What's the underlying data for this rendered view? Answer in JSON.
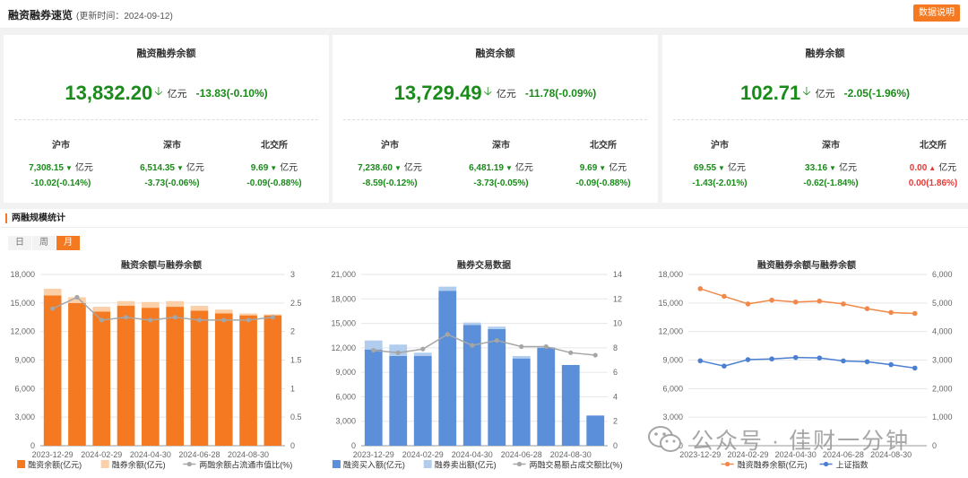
{
  "header": {
    "title": "融资融券速览",
    "update_text": "(更新时间：2024-09-12)",
    "button": "数据说明"
  },
  "cards": [
    {
      "title": "融资融券余额",
      "value": "13,832.20",
      "unit": "亿元",
      "change": "-13.83(-0.10%)",
      "subs": [
        {
          "name": "沪市",
          "value": "7,308.15",
          "unit": "亿元",
          "change": "-10.02(-0.14%)",
          "dir": "down"
        },
        {
          "name": "深市",
          "value": "6,514.35",
          "unit": "亿元",
          "change": "-3.73(-0.06%)",
          "dir": "down"
        },
        {
          "name": "北交所",
          "value": "9.69",
          "unit": "亿元",
          "change": "-0.09(-0.88%)",
          "dir": "down"
        }
      ]
    },
    {
      "title": "融资余额",
      "value": "13,729.49",
      "unit": "亿元",
      "change": "-11.78(-0.09%)",
      "subs": [
        {
          "name": "沪市",
          "value": "7,238.60",
          "unit": "亿元",
          "change": "-8.59(-0.12%)",
          "dir": "down"
        },
        {
          "name": "深市",
          "value": "6,481.19",
          "unit": "亿元",
          "change": "-3.73(-0.05%)",
          "dir": "down"
        },
        {
          "name": "北交所",
          "value": "9.69",
          "unit": "亿元",
          "change": "-0.09(-0.88%)",
          "dir": "down"
        }
      ]
    },
    {
      "title": "融券余额",
      "value": "102.71",
      "unit": "亿元",
      "change": "-2.05(-1.96%)",
      "subs": [
        {
          "name": "沪市",
          "value": "69.55",
          "unit": "亿元",
          "change": "-1.43(-2.01%)",
          "dir": "down"
        },
        {
          "name": "深市",
          "value": "33.16",
          "unit": "亿元",
          "change": "-0.62(-1.84%)",
          "dir": "down"
        },
        {
          "name": "北交所",
          "value": "0.00",
          "unit": "亿元",
          "change": "0.00(1.86%)",
          "dir": "up"
        }
      ]
    }
  ],
  "section": {
    "title": "两融规模统计",
    "tabs": [
      "日",
      "周",
      "月"
    ],
    "active_tab": "月"
  },
  "colors": {
    "orange": "#f47920",
    "orange_light": "#fbcfa8",
    "blue": "#5b8fd9",
    "blue_light": "#b0cdee",
    "gray_line": "#a6a6a6",
    "green": "#1a8a1a",
    "red": "#e53935",
    "line_orange": "#f0894a",
    "line_blue": "#4a7fd1"
  },
  "watermark": "公众号 · 佳财一分钟",
  "chart_data": [
    {
      "type": "bar",
      "title": "融资余额与融券余额",
      "categories": [
        "2023-12-29",
        "2024-01-31",
        "2024-02-29",
        "2024-03-29",
        "2024-04-30",
        "2024-05-31",
        "2024-06-28",
        "2024-07-31",
        "2024-08-30",
        "2024-09-12"
      ],
      "x_tick_labels": [
        "2023-12-29",
        "2024-02-29",
        "2024-04-30",
        "2024-06-28",
        "2024-08-30"
      ],
      "series": [
        {
          "name": "融资余额(亿元)",
          "axis": "left",
          "stack": true,
          "values": [
            15800,
            15000,
            14100,
            14700,
            14500,
            14600,
            14200,
            13900,
            13700,
            13700
          ]
        },
        {
          "name": "融券余额(亿元)",
          "axis": "left",
          "stack": true,
          "values": [
            700,
            600,
            500,
            500,
            600,
            600,
            500,
            400,
            200,
            100
          ]
        },
        {
          "name": "两融余额占流通市值比(%)",
          "axis": "right",
          "type": "line",
          "values": [
            2.4,
            2.6,
            2.2,
            2.25,
            2.2,
            2.25,
            2.2,
            2.2,
            2.2,
            2.25
          ]
        }
      ],
      "ylim_left": [
        0,
        18000
      ],
      "yticks_left": [
        "0",
        "3,000",
        "6,000",
        "9,000",
        "12,000",
        "15,000",
        "18,000"
      ],
      "ylim_right": [
        0,
        3
      ],
      "yticks_right": [
        "0",
        "0.5",
        "1",
        "1.5",
        "2",
        "2.5",
        "3"
      ]
    },
    {
      "type": "bar",
      "title": "融券交易数据",
      "categories": [
        "2023-12-29",
        "2024-01-31",
        "2024-02-29",
        "2024-03-29",
        "2024-04-30",
        "2024-05-31",
        "2024-06-28",
        "2024-07-31",
        "2024-08-30",
        "2024-09-12"
      ],
      "x_tick_labels": [
        "2023-12-29",
        "2024-02-29",
        "2024-04-30",
        "2024-06-28",
        "2024-08-30"
      ],
      "series": [
        {
          "name": "融资买入额(亿元)",
          "axis": "left",
          "stack": true,
          "values": [
            11800,
            11000,
            11000,
            19000,
            14800,
            14300,
            10700,
            12000,
            9900,
            3700
          ]
        },
        {
          "name": "融券卖出额(亿元)",
          "axis": "left",
          "stack": true,
          "values": [
            1100,
            1400,
            400,
            500,
            300,
            300,
            300,
            100,
            0,
            0
          ]
        },
        {
          "name": "两融交易额占成交额比(%)",
          "axis": "right",
          "type": "line",
          "values": [
            7.8,
            7.6,
            7.9,
            9.1,
            8.2,
            8.6,
            8.1,
            8.1,
            7.6,
            7.4
          ]
        }
      ],
      "ylim_left": [
        0,
        21000
      ],
      "yticks_left": [
        "0",
        "3,000",
        "6,000",
        "9,000",
        "12,000",
        "15,000",
        "18,000",
        "21,000"
      ],
      "ylim_right": [
        0,
        14
      ],
      "yticks_right": [
        "0",
        "2",
        "4",
        "6",
        "8",
        "10",
        "12",
        "14"
      ]
    },
    {
      "type": "line",
      "title": "融资融券余额与融券余额",
      "categories": [
        "2023-12-29",
        "2024-01-31",
        "2024-02-29",
        "2024-03-29",
        "2024-04-30",
        "2024-05-31",
        "2024-06-28",
        "2024-07-31",
        "2024-08-30",
        "2024-09-12"
      ],
      "x_tick_labels": [
        "2023-12-29",
        "2024-02-29",
        "2024-04-30",
        "2024-06-28",
        "2024-08-30"
      ],
      "series": [
        {
          "name": "融资融券余额(亿元)",
          "axis": "left",
          "values": [
            16500,
            15700,
            14900,
            15300,
            15100,
            15200,
            14900,
            14400,
            14000,
            13900
          ]
        },
        {
          "name": "上证指数",
          "axis": "right",
          "values": [
            2975,
            2790,
            3015,
            3040,
            3090,
            3075,
            2970,
            2940,
            2840,
            2720
          ]
        }
      ],
      "ylim_left": [
        0,
        18000
      ],
      "yticks_left": [
        "0",
        "3,000",
        "6,000",
        "9,000",
        "12,000",
        "15,000",
        "18,000"
      ],
      "ylim_right": [
        0,
        6000
      ],
      "yticks_right": [
        "0",
        "1,000",
        "2,000",
        "3,000",
        "4,000",
        "5,000",
        "6,000"
      ]
    }
  ]
}
